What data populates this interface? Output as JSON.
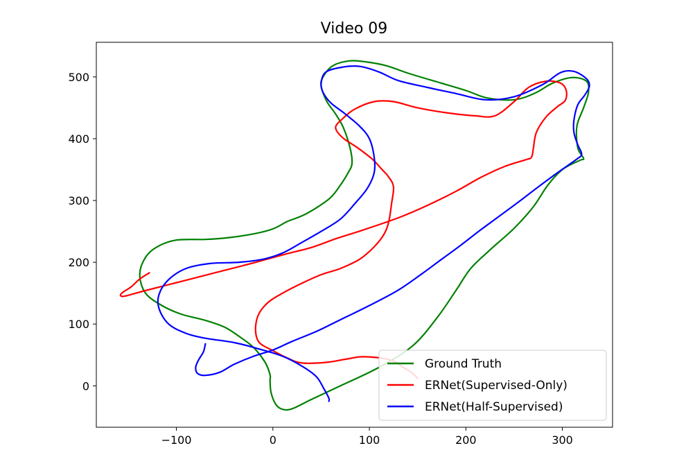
{
  "chart_data": {
    "type": "line",
    "title": "Video 09",
    "xlabel": "",
    "ylabel": "",
    "xlim": [
      -183,
      352
    ],
    "ylim": [
      -67,
      556
    ],
    "xticks": [
      -100,
      0,
      100,
      200,
      300
    ],
    "yticks": [
      0,
      100,
      200,
      300,
      400,
      500
    ],
    "xtick_labels": [
      "−100",
      "0",
      "100",
      "200",
      "300"
    ],
    "ytick_labels": [
      "0",
      "100",
      "200",
      "300",
      "400",
      "500"
    ],
    "grid": false,
    "legend_position": "lower-right",
    "series": [
      {
        "name": "Ground Truth",
        "color": "#008000",
        "points": [
          [
            -3,
            10
          ],
          [
            -2,
            -10
          ],
          [
            3,
            -30
          ],
          [
            10,
            -38
          ],
          [
            20,
            -37
          ],
          [
            40,
            -22
          ],
          [
            70,
            0
          ],
          [
            110,
            30
          ],
          [
            145,
            65
          ],
          [
            170,
            110
          ],
          [
            190,
            155
          ],
          [
            205,
            190
          ],
          [
            225,
            220
          ],
          [
            250,
            255
          ],
          [
            270,
            290
          ],
          [
            285,
            325
          ],
          [
            300,
            350
          ],
          [
            318,
            365
          ],
          [
            322,
            368
          ],
          [
            316,
            385
          ],
          [
            315,
            420
          ],
          [
            322,
            450
          ],
          [
            327,
            475
          ],
          [
            325,
            493
          ],
          [
            310,
            499
          ],
          [
            290,
            490
          ],
          [
            272,
            474
          ],
          [
            250,
            463
          ],
          [
            222,
            466
          ],
          [
            200,
            478
          ],
          [
            170,
            492
          ],
          [
            140,
            506
          ],
          [
            118,
            518
          ],
          [
            98,
            524
          ],
          [
            80,
            526
          ],
          [
            62,
            518
          ],
          [
            52,
            500
          ],
          [
            50,
            485
          ],
          [
            56,
            460
          ],
          [
            65,
            440
          ],
          [
            73,
            418
          ],
          [
            80,
            385
          ],
          [
            82,
            360
          ],
          [
            78,
            345
          ],
          [
            70,
            325
          ],
          [
            60,
            305
          ],
          [
            45,
            288
          ],
          [
            30,
            275
          ],
          [
            15,
            266
          ],
          [
            0,
            254
          ],
          [
            -20,
            246
          ],
          [
            -45,
            240
          ],
          [
            -70,
            237
          ],
          [
            -100,
            236
          ],
          [
            -120,
            225
          ],
          [
            -132,
            208
          ],
          [
            -138,
            180
          ],
          [
            -132,
            150
          ],
          [
            -115,
            130
          ],
          [
            -95,
            116
          ],
          [
            -70,
            106
          ],
          [
            -50,
            95
          ],
          [
            -35,
            80
          ],
          [
            -20,
            62
          ],
          [
            -8,
            38
          ],
          [
            -3,
            18
          ],
          [
            -3,
            10
          ]
        ]
      },
      {
        "name": "ERNet(Supervised-Only)",
        "color": "#ff0000",
        "points": [
          [
            -128,
            183
          ],
          [
            -138,
            173
          ],
          [
            -147,
            160
          ],
          [
            -155,
            152
          ],
          [
            -158,
            147
          ],
          [
            -154,
            145
          ],
          [
            -135,
            153
          ],
          [
            -110,
            163
          ],
          [
            -80,
            175
          ],
          [
            -50,
            187
          ],
          [
            -20,
            199
          ],
          [
            10,
            212
          ],
          [
            40,
            224
          ],
          [
            65,
            238
          ],
          [
            95,
            253
          ],
          [
            130,
            272
          ],
          [
            160,
            292
          ],
          [
            190,
            315
          ],
          [
            215,
            337
          ],
          [
            240,
            355
          ],
          [
            262,
            366
          ],
          [
            268,
            370
          ],
          [
            270,
            385
          ],
          [
            273,
            410
          ],
          [
            283,
            435
          ],
          [
            295,
            452
          ],
          [
            303,
            462
          ],
          [
            304,
            478
          ],
          [
            298,
            490
          ],
          [
            283,
            493
          ],
          [
            265,
            483
          ],
          [
            250,
            460
          ],
          [
            230,
            437
          ],
          [
            210,
            437
          ],
          [
            180,
            442
          ],
          [
            150,
            450
          ],
          [
            125,
            460
          ],
          [
            105,
            460
          ],
          [
            85,
            448
          ],
          [
            72,
            432
          ],
          [
            65,
            418
          ],
          [
            72,
            402
          ],
          [
            88,
            385
          ],
          [
            103,
            367
          ],
          [
            112,
            352
          ],
          [
            120,
            338
          ],
          [
            125,
            322
          ],
          [
            123,
            295
          ],
          [
            120,
            265
          ],
          [
            115,
            245
          ],
          [
            105,
            225
          ],
          [
            90,
            205
          ],
          [
            70,
            190
          ],
          [
            50,
            180
          ],
          [
            30,
            166
          ],
          [
            10,
            150
          ],
          [
            -5,
            135
          ],
          [
            -15,
            115
          ],
          [
            -18,
            90
          ],
          [
            -14,
            70
          ],
          [
            0,
            57
          ],
          [
            15,
            45
          ],
          [
            30,
            37
          ],
          [
            55,
            38
          ],
          [
            75,
            43
          ],
          [
            92,
            47
          ],
          [
            112,
            45
          ],
          [
            125,
            40
          ],
          [
            135,
            30
          ],
          [
            145,
            20
          ],
          [
            150,
            12
          ]
        ]
      },
      {
        "name": "ERNet(Half-Supervised)",
        "color": "#0000ff",
        "points": [
          [
            -70,
            68
          ],
          [
            -72,
            55
          ],
          [
            -77,
            42
          ],
          [
            -80,
            30
          ],
          [
            -78,
            20
          ],
          [
            -70,
            17
          ],
          [
            -55,
            22
          ],
          [
            -40,
            35
          ],
          [
            -20,
            48
          ],
          [
            0,
            58
          ],
          [
            20,
            72
          ],
          [
            45,
            88
          ],
          [
            70,
            107
          ],
          [
            100,
            130
          ],
          [
            130,
            155
          ],
          [
            155,
            182
          ],
          [
            175,
            205
          ],
          [
            195,
            228
          ],
          [
            215,
            252
          ],
          [
            235,
            275
          ],
          [
            255,
            298
          ],
          [
            275,
            322
          ],
          [
            295,
            345
          ],
          [
            315,
            367
          ],
          [
            320,
            375
          ],
          [
            316,
            390
          ],
          [
            312,
            410
          ],
          [
            312,
            430
          ],
          [
            316,
            455
          ],
          [
            323,
            470
          ],
          [
            328,
            485
          ],
          [
            325,
            497
          ],
          [
            312,
            509
          ],
          [
            298,
            507
          ],
          [
            280,
            488
          ],
          [
            250,
            468
          ],
          [
            220,
            463
          ],
          [
            190,
            473
          ],
          [
            160,
            483
          ],
          [
            130,
            494
          ],
          [
            110,
            508
          ],
          [
            90,
            517
          ],
          [
            73,
            516
          ],
          [
            55,
            508
          ],
          [
            50,
            490
          ],
          [
            52,
            475
          ],
          [
            60,
            458
          ],
          [
            75,
            440
          ],
          [
            90,
            420
          ],
          [
            100,
            400
          ],
          [
            105,
            370
          ],
          [
            105,
            345
          ],
          [
            98,
            320
          ],
          [
            85,
            295
          ],
          [
            70,
            270
          ],
          [
            50,
            250
          ],
          [
            30,
            232
          ],
          [
            10,
            215
          ],
          [
            -10,
            205
          ],
          [
            -35,
            200
          ],
          [
            -65,
            198
          ],
          [
            -90,
            190
          ],
          [
            -108,
            172
          ],
          [
            -118,
            148
          ],
          [
            -118,
            125
          ],
          [
            -108,
            100
          ],
          [
            -90,
            85
          ],
          [
            -70,
            77
          ],
          [
            -40,
            70
          ],
          [
            -15,
            60
          ],
          [
            10,
            48
          ],
          [
            30,
            32
          ],
          [
            45,
            15
          ],
          [
            53,
            -5
          ],
          [
            58,
            -20
          ],
          [
            58,
            -25
          ]
        ]
      }
    ]
  }
}
